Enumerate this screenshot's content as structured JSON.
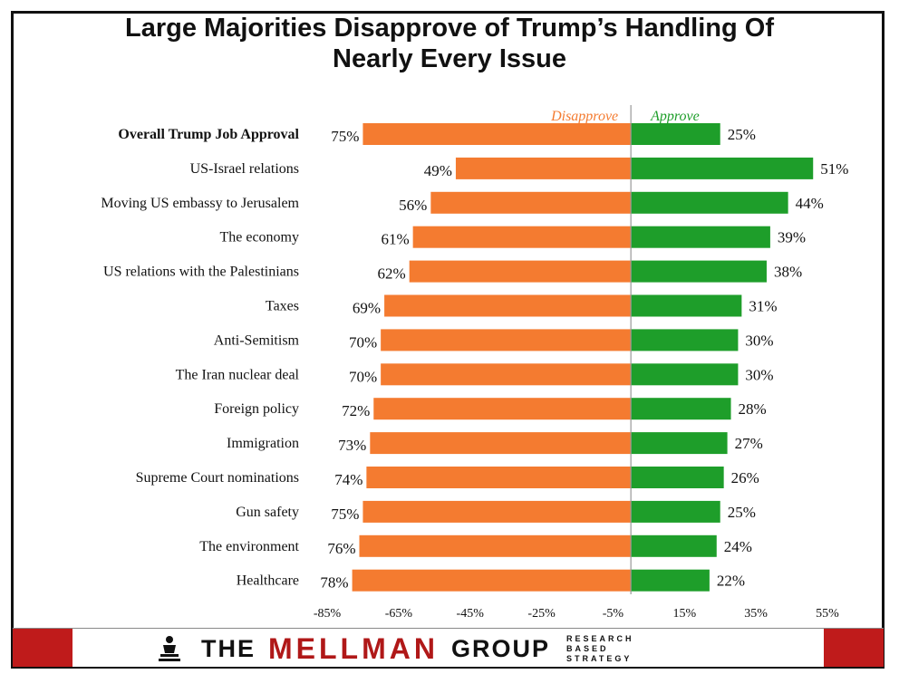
{
  "title_line1": "Large Majorities Disapprove of Trump’s Handling Of",
  "title_line2": "Nearly Every Issue",
  "chart_data": {
    "type": "bar",
    "orientation": "horizontal-diverging",
    "title": "Large Majorities Disapprove of Trump’s Handling Of Nearly Every Issue",
    "categories": [
      "Overall Trump Job Approval",
      "US-Israel relations",
      "Moving US embassy to Jerusalem",
      "The economy",
      "US relations with the Palestinians",
      "Taxes",
      "Anti-Semitism",
      "The Iran nuclear deal",
      "Foreign policy",
      "Immigration",
      "Supreme Court nominations",
      "Gun safety",
      "The environment",
      "Healthcare"
    ],
    "series": [
      {
        "name": "Disapprove",
        "color": "#f47b30",
        "values": [
          75,
          49,
          56,
          61,
          62,
          69,
          70,
          70,
          72,
          73,
          74,
          75,
          76,
          78
        ]
      },
      {
        "name": "Approve",
        "color": "#1e9e2a",
        "values": [
          25,
          51,
          44,
          39,
          38,
          31,
          30,
          30,
          28,
          27,
          26,
          25,
          24,
          22
        ]
      }
    ],
    "xlim": [
      -85,
      55
    ],
    "x_ticks": [
      -85,
      -65,
      -45,
      -25,
      -5,
      15,
      35,
      55
    ],
    "x_tick_labels": [
      "-85%",
      "-65%",
      "-45%",
      "-25%",
      "-5%",
      "15%",
      "35%",
      "55%"
    ],
    "legend": [
      "Disapprove",
      "Approve"
    ],
    "grid": false
  },
  "footer": {
    "brand_word1": "THE",
    "brand_word2": "MELLMAN",
    "brand_word3": "GROUP",
    "tagline": [
      "RESEARCH",
      "BASED",
      "STRATEGY"
    ]
  },
  "colors": {
    "disapprove": "#f47b30",
    "approve": "#1e9e2a",
    "brand_red": "#b01818"
  }
}
